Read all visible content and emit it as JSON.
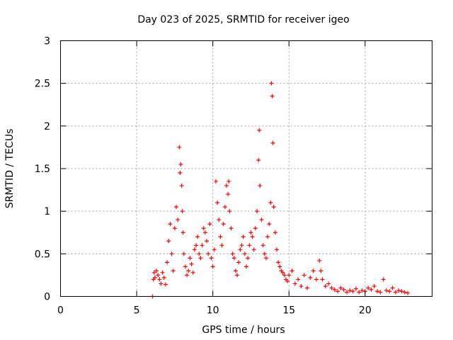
{
  "chart_data": {
    "type": "scatter",
    "title": "Day 023 of 2025, SRMTID for receiver igeo",
    "xlabel": "GPS time / hours",
    "ylabel": "SRMTID / TECUs",
    "xlim": [
      0,
      24.4
    ],
    "ylim": [
      0,
      3
    ],
    "xticks": [
      0,
      5,
      10,
      15,
      20
    ],
    "xtick_labels": [
      "0",
      "5",
      "10",
      "15",
      "20"
    ],
    "yticks": [
      0,
      0.5,
      1,
      1.5,
      2,
      2.5,
      3
    ],
    "ytick_labels": [
      "0",
      "0.5",
      "1",
      "1.5",
      "2",
      "2.5",
      "3"
    ],
    "grid": true,
    "marker": "+",
    "marker_color": "#ff0000",
    "series": [
      {
        "name": "SRMTID",
        "x": [
          6.05,
          6.1,
          6.15,
          6.2,
          6.3,
          6.4,
          6.5,
          6.6,
          6.7,
          6.8,
          6.9,
          7.0,
          7.1,
          7.2,
          7.3,
          7.4,
          7.5,
          7.6,
          7.7,
          7.8,
          7.85,
          7.9,
          7.95,
          8.0,
          8.05,
          8.1,
          8.2,
          8.3,
          8.4,
          8.5,
          8.6,
          8.7,
          8.8,
          8.9,
          9.0,
          9.1,
          9.2,
          9.3,
          9.4,
          9.5,
          9.6,
          9.7,
          9.8,
          9.9,
          10.0,
          10.1,
          10.2,
          10.3,
          10.4,
          10.5,
          10.6,
          10.7,
          10.8,
          10.9,
          11.0,
          11.05,
          11.1,
          11.2,
          11.3,
          11.4,
          11.5,
          11.6,
          11.7,
          11.8,
          11.9,
          12.0,
          12.1,
          12.2,
          12.3,
          12.4,
          12.5,
          12.6,
          12.7,
          12.8,
          12.9,
          13.0,
          13.05,
          13.1,
          13.2,
          13.3,
          13.4,
          13.5,
          13.6,
          13.7,
          13.8,
          13.85,
          13.9,
          13.95,
          14.0,
          14.1,
          14.2,
          14.3,
          14.4,
          14.5,
          14.6,
          14.7,
          14.8,
          14.9,
          15.0,
          15.2,
          15.4,
          15.6,
          15.8,
          16.0,
          16.2,
          16.4,
          16.6,
          16.8,
          17.0,
          17.1,
          17.2,
          17.4,
          17.6,
          17.8,
          18.0,
          18.2,
          18.4,
          18.6,
          18.8,
          19.0,
          19.2,
          19.4,
          19.6,
          19.8,
          20.0,
          20.2,
          20.4,
          20.6,
          20.8,
          21.0,
          21.2,
          21.4,
          21.6,
          21.8,
          22.0,
          22.2,
          22.4,
          22.6,
          22.8
        ],
        "y": [
          0.0,
          0.2,
          0.28,
          0.22,
          0.3,
          0.25,
          0.2,
          0.15,
          0.28,
          0.22,
          0.14,
          0.4,
          0.65,
          0.85,
          0.5,
          0.3,
          0.8,
          1.05,
          0.9,
          1.75,
          1.45,
          1.55,
          1.3,
          1.0,
          0.75,
          0.5,
          0.35,
          0.25,
          0.3,
          0.45,
          0.38,
          0.28,
          0.55,
          0.6,
          0.7,
          0.5,
          0.45,
          0.6,
          0.8,
          0.75,
          0.65,
          0.5,
          0.85,
          0.45,
          0.35,
          0.55,
          1.35,
          1.1,
          0.9,
          0.7,
          0.6,
          0.85,
          1.05,
          1.3,
          1.2,
          1.35,
          1.0,
          0.8,
          0.5,
          0.45,
          0.3,
          0.25,
          0.4,
          0.55,
          0.6,
          0.7,
          0.5,
          0.35,
          0.45,
          0.6,
          0.75,
          0.7,
          0.55,
          0.8,
          1.0,
          1.6,
          1.95,
          1.3,
          0.9,
          0.6,
          0.5,
          0.45,
          0.7,
          0.85,
          1.1,
          2.5,
          2.35,
          1.8,
          1.05,
          0.75,
          0.55,
          0.4,
          0.35,
          0.3,
          0.28,
          0.25,
          0.2,
          0.18,
          0.25,
          0.3,
          0.15,
          0.2,
          0.12,
          0.25,
          0.1,
          0.22,
          0.3,
          0.2,
          0.42,
          0.3,
          0.2,
          0.12,
          0.15,
          0.1,
          0.08,
          0.06,
          0.1,
          0.08,
          0.05,
          0.07,
          0.06,
          0.09,
          0.05,
          0.07,
          0.06,
          0.1,
          0.08,
          0.12,
          0.06,
          0.05,
          0.2,
          0.07,
          0.06,
          0.1,
          0.05,
          0.07,
          0.06,
          0.05,
          0.04
        ]
      }
    ]
  }
}
